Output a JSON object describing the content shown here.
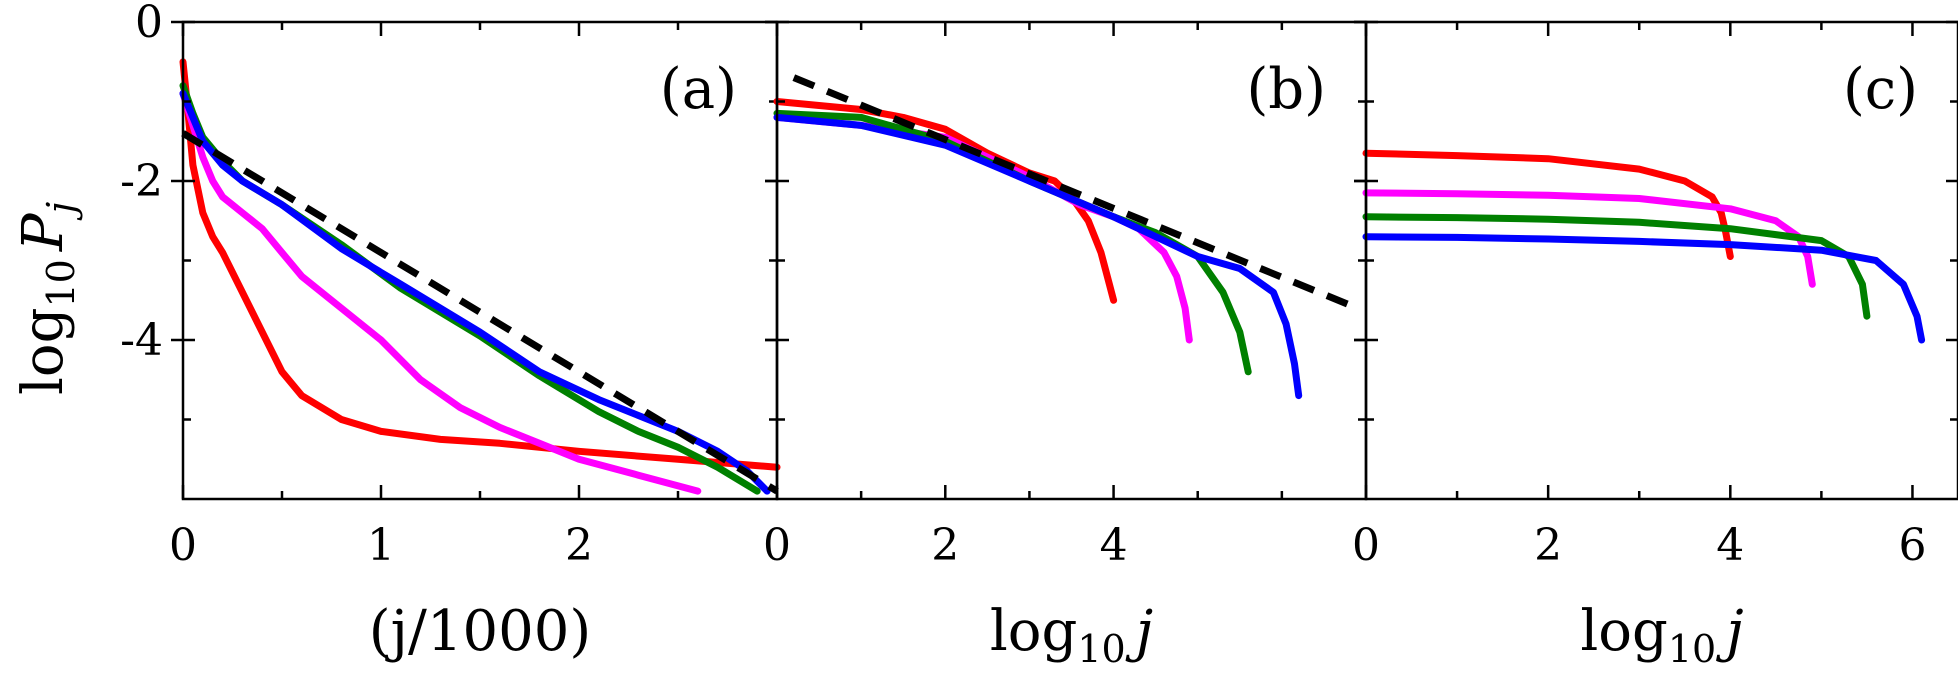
{
  "colors": {
    "red": "#ff0000",
    "magenta": "#ff00ff",
    "green": "#008000",
    "blue": "#0000ff",
    "black": "#000000"
  },
  "ylabel": {
    "main": "log",
    "sub": "10",
    "var": "P",
    "varsub": "j"
  },
  "chart_data": [
    {
      "type": "line",
      "panel_label": "(a)",
      "xlabel": "(j/1000)",
      "xlim": [
        0,
        3
      ],
      "ylim": [
        -6,
        0
      ],
      "xticks": [
        0,
        1,
        2
      ],
      "xtick_labels": [
        "0",
        "1",
        "2"
      ],
      "minor_xticks": [
        0.5,
        1.5,
        2.5
      ],
      "yticks": [
        0,
        -2,
        -4
      ],
      "ytick_labels": [
        "0",
        "-2",
        "-4"
      ],
      "minor_yticks": [
        -1,
        -3,
        -5
      ],
      "series": [
        {
          "name": "red",
          "color": "#ff0000",
          "x": [
            0,
            0.02,
            0.05,
            0.1,
            0.15,
            0.2,
            0.3,
            0.4,
            0.5,
            0.6,
            0.8,
            1.0,
            1.3,
            1.6,
            2.0,
            2.5,
            3.0
          ],
          "y": [
            -0.5,
            -1.0,
            -1.8,
            -2.4,
            -2.7,
            -2.9,
            -3.4,
            -3.9,
            -4.4,
            -4.7,
            -5.0,
            -5.15,
            -5.25,
            -5.3,
            -5.4,
            -5.5,
            -5.6
          ]
        },
        {
          "name": "magenta",
          "color": "#ff00ff",
          "x": [
            0,
            0.05,
            0.1,
            0.15,
            0.2,
            0.3,
            0.4,
            0.5,
            0.6,
            0.8,
            1.0,
            1.2,
            1.4,
            1.6,
            1.8,
            2.0,
            2.3,
            2.6
          ],
          "y": [
            -0.9,
            -1.3,
            -1.7,
            -2.0,
            -2.2,
            -2.4,
            -2.6,
            -2.9,
            -3.2,
            -3.6,
            -4.0,
            -4.5,
            -4.85,
            -5.1,
            -5.3,
            -5.5,
            -5.7,
            -5.9
          ]
        },
        {
          "name": "green",
          "color": "#008000",
          "x": [
            0,
            0.05,
            0.1,
            0.2,
            0.3,
            0.5,
            0.8,
            1.1,
            1.5,
            1.8,
            2.1,
            2.3,
            2.5,
            2.7,
            2.9
          ],
          "y": [
            -0.8,
            -1.15,
            -1.45,
            -1.75,
            -2.0,
            -2.3,
            -2.8,
            -3.35,
            -3.95,
            -4.45,
            -4.9,
            -5.15,
            -5.35,
            -5.6,
            -5.9
          ]
        },
        {
          "name": "blue",
          "color": "#0000ff",
          "x": [
            0,
            0.05,
            0.1,
            0.2,
            0.3,
            0.5,
            0.8,
            1.1,
            1.5,
            1.8,
            2.1,
            2.3,
            2.5,
            2.7,
            2.85,
            2.95
          ],
          "y": [
            -0.9,
            -1.2,
            -1.5,
            -1.8,
            -2.0,
            -2.3,
            -2.85,
            -3.3,
            -3.9,
            -4.4,
            -4.75,
            -4.95,
            -5.15,
            -5.4,
            -5.65,
            -5.9
          ]
        }
      ],
      "fit": {
        "color": "#000000",
        "x": [
          0,
          3
        ],
        "y": [
          -1.4,
          -5.9
        ]
      }
    },
    {
      "type": "line",
      "panel_label": "(b)",
      "xlabel": "log10 j",
      "xlim": [
        0,
        7
      ],
      "ylim": [
        -6,
        0
      ],
      "xticks": [
        0,
        2,
        4
      ],
      "xtick_labels": [
        "0",
        "2",
        "4"
      ],
      "minor_xticks": [
        1,
        3,
        5,
        6
      ],
      "yticks": [
        0,
        -2,
        -4
      ],
      "ytick_labels": [
        "",
        "",
        ""
      ],
      "minor_yticks": [
        -1,
        -3,
        -5
      ],
      "series": [
        {
          "name": "red",
          "color": "#ff0000",
          "x": [
            0,
            0.5,
            1.0,
            1.5,
            2.0,
            2.5,
            3.0,
            3.3,
            3.5,
            3.7,
            3.85,
            3.95,
            4.0
          ],
          "y": [
            -1.0,
            -1.05,
            -1.1,
            -1.2,
            -1.35,
            -1.65,
            -1.9,
            -2.0,
            -2.2,
            -2.5,
            -2.9,
            -3.3,
            -3.5
          ]
        },
        {
          "name": "magenta",
          "color": "#ff00ff",
          "x": [
            0,
            1.0,
            2.0,
            3.0,
            3.6,
            4.0,
            4.3,
            4.6,
            4.75,
            4.85,
            4.9
          ],
          "y": [
            -1.2,
            -1.3,
            -1.45,
            -1.95,
            -2.3,
            -2.45,
            -2.6,
            -2.9,
            -3.2,
            -3.6,
            -4.0
          ]
        },
        {
          "name": "green",
          "color": "#008000",
          "x": [
            0,
            1.0,
            2.0,
            3.0,
            4.0,
            4.5,
            5.0,
            5.3,
            5.5,
            5.6
          ],
          "y": [
            -1.15,
            -1.2,
            -1.5,
            -2.0,
            -2.45,
            -2.65,
            -2.95,
            -3.4,
            -3.9,
            -4.4
          ]
        },
        {
          "name": "blue",
          "color": "#0000ff",
          "x": [
            0,
            1.0,
            2.0,
            3.0,
            4.0,
            5.0,
            5.5,
            5.9,
            6.05,
            6.15,
            6.2
          ],
          "y": [
            -1.2,
            -1.3,
            -1.55,
            -2.0,
            -2.45,
            -2.95,
            -3.1,
            -3.4,
            -3.8,
            -4.3,
            -4.7
          ]
        }
      ],
      "fit": {
        "color": "#000000",
        "x": [
          0.2,
          6.9
        ],
        "y": [
          -0.7,
          -3.6
        ]
      }
    },
    {
      "type": "line",
      "panel_label": "(c)",
      "xlabel": "log10 j",
      "xlim": [
        0,
        6.5
      ],
      "ylim": [
        -6,
        0
      ],
      "xticks": [
        0,
        2,
        4,
        6
      ],
      "xtick_labels": [
        "0",
        "2",
        "4",
        "6"
      ],
      "minor_xticks": [
        1,
        3,
        5
      ],
      "yticks": [
        0,
        -2,
        -4
      ],
      "ytick_labels": [
        "",
        "",
        ""
      ],
      "minor_yticks": [
        -1,
        -3,
        -5
      ],
      "series": [
        {
          "name": "red",
          "color": "#ff0000",
          "x": [
            0,
            1.0,
            2.0,
            3.0,
            3.5,
            3.8,
            3.9,
            3.95,
            4.0
          ],
          "y": [
            -1.65,
            -1.68,
            -1.72,
            -1.85,
            -2.0,
            -2.2,
            -2.4,
            -2.65,
            -2.95
          ]
        },
        {
          "name": "magenta",
          "color": "#ff00ff",
          "x": [
            0,
            1.0,
            2.0,
            3.0,
            4.0,
            4.5,
            4.75,
            4.85,
            4.9
          ],
          "y": [
            -2.15,
            -2.16,
            -2.18,
            -2.22,
            -2.35,
            -2.5,
            -2.7,
            -2.95,
            -3.3
          ]
        },
        {
          "name": "green",
          "color": "#008000",
          "x": [
            0,
            1.0,
            2.0,
            3.0,
            4.0,
            5.0,
            5.3,
            5.45,
            5.5
          ],
          "y": [
            -2.45,
            -2.46,
            -2.48,
            -2.52,
            -2.6,
            -2.75,
            -2.95,
            -3.3,
            -3.7
          ]
        },
        {
          "name": "blue",
          "color": "#0000ff",
          "x": [
            0,
            1.0,
            2.0,
            3.0,
            4.0,
            5.0,
            5.6,
            5.9,
            6.05,
            6.1
          ],
          "y": [
            -2.7,
            -2.71,
            -2.73,
            -2.76,
            -2.8,
            -2.87,
            -3.0,
            -3.3,
            -3.7,
            -4.0
          ]
        }
      ]
    }
  ]
}
